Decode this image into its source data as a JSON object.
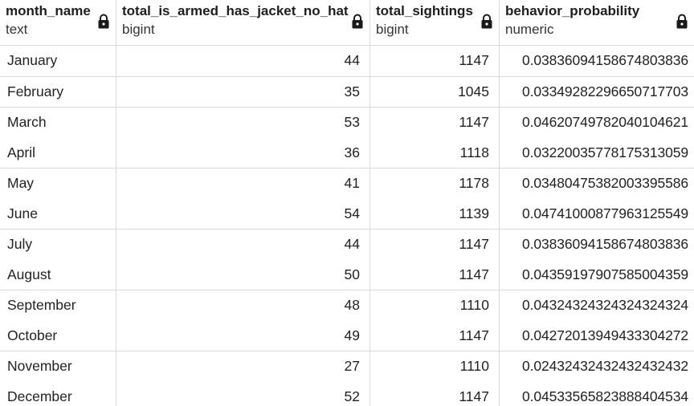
{
  "columns": [
    {
      "name": "month_name",
      "type": "text"
    },
    {
      "name": "total_is_armed_has_jacket_no_hat",
      "type": "bigint"
    },
    {
      "name": "total_sightings",
      "type": "bigint"
    },
    {
      "name": "behavior_probability",
      "type": "numeric"
    }
  ],
  "rows": [
    {
      "month_name": "January",
      "total_is_armed_has_jacket_no_hat": "44",
      "total_sightings": "1147",
      "behavior_probability": "0.03836094158674803836"
    },
    {
      "month_name": "February",
      "total_is_armed_has_jacket_no_hat": "35",
      "total_sightings": "1045",
      "behavior_probability": "0.03349282296650717703"
    },
    {
      "month_name": "March",
      "total_is_armed_has_jacket_no_hat": "53",
      "total_sightings": "1147",
      "behavior_probability": "0.04620749782040104621"
    },
    {
      "month_name": "April",
      "total_is_armed_has_jacket_no_hat": "36",
      "total_sightings": "1118",
      "behavior_probability": "0.03220035778175313059"
    },
    {
      "month_name": "May",
      "total_is_armed_has_jacket_no_hat": "41",
      "total_sightings": "1178",
      "behavior_probability": "0.03480475382003395586"
    },
    {
      "month_name": "June",
      "total_is_armed_has_jacket_no_hat": "54",
      "total_sightings": "1139",
      "behavior_probability": "0.04741000877963125549"
    },
    {
      "month_name": "July",
      "total_is_armed_has_jacket_no_hat": "44",
      "total_sightings": "1147",
      "behavior_probability": "0.03836094158674803836"
    },
    {
      "month_name": "August",
      "total_is_armed_has_jacket_no_hat": "50",
      "total_sightings": "1147",
      "behavior_probability": "0.04359197907585004359"
    },
    {
      "month_name": "September",
      "total_is_armed_has_jacket_no_hat": "48",
      "total_sightings": "1110",
      "behavior_probability": "0.04324324324324324324"
    },
    {
      "month_name": "October",
      "total_is_armed_has_jacket_no_hat": "49",
      "total_sightings": "1147",
      "behavior_probability": "0.04272013949433304272"
    },
    {
      "month_name": "November",
      "total_is_armed_has_jacket_no_hat": "27",
      "total_sightings": "1110",
      "behavior_probability": "0.02432432432432432432"
    },
    {
      "month_name": "December",
      "total_is_armed_has_jacket_no_hat": "52",
      "total_sightings": "1147",
      "behavior_probability": "0.04533565823888404534"
    }
  ],
  "icons": {
    "column_lock": "lock-icon"
  },
  "colors": {
    "gridline": "#d9d9d9",
    "text": "#222222",
    "background": "#ffffff"
  }
}
